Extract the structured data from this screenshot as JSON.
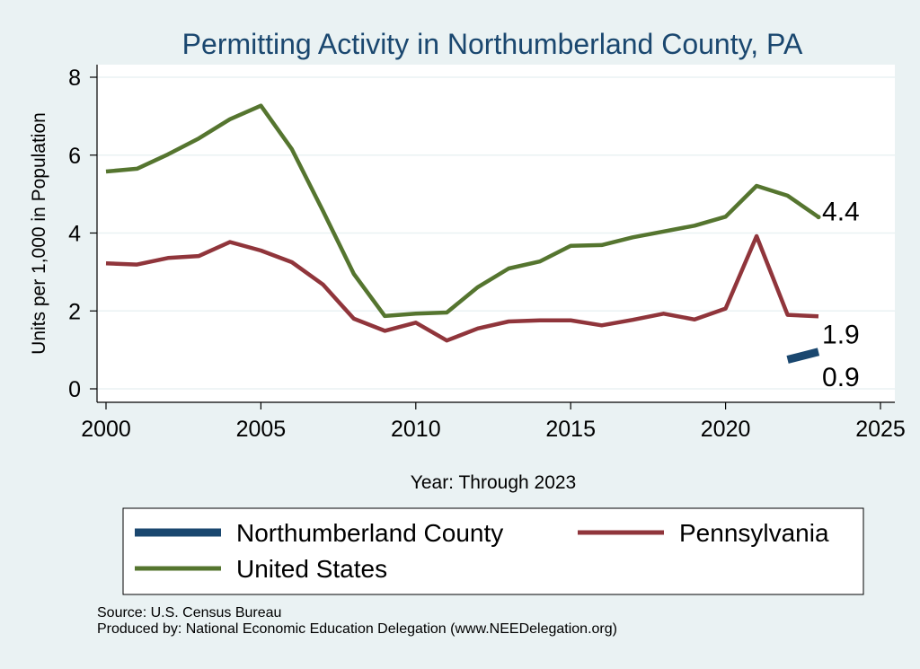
{
  "chart_data": {
    "type": "line",
    "title": "Permitting Activity in Northumberland County, PA",
    "xlabel": "Year: Through 2023",
    "ylabel": "Units per 1,000 in Population",
    "xlim": [
      2000,
      2025
    ],
    "ylim": [
      0,
      8
    ],
    "x_ticks": [
      2000,
      2005,
      2010,
      2015,
      2020,
      2025
    ],
    "y_ticks": [
      0,
      2,
      4,
      6,
      8
    ],
    "grid": "horizontal",
    "legend_position": "bottom",
    "series": [
      {
        "name": "Northumberland County",
        "color": "#1a476f",
        "x": [
          2022,
          2023
        ],
        "values": [
          0.75,
          0.95
        ],
        "end_label": "0.9"
      },
      {
        "name": "Pennsylvania",
        "color": "#90353b",
        "x": [
          2000,
          2001,
          2002,
          2003,
          2004,
          2005,
          2006,
          2007,
          2008,
          2009,
          2010,
          2011,
          2012,
          2013,
          2014,
          2015,
          2016,
          2017,
          2018,
          2019,
          2020,
          2021,
          2022,
          2023
        ],
        "values": [
          3.22,
          3.19,
          3.36,
          3.41,
          3.77,
          3.55,
          3.25,
          2.68,
          1.8,
          1.49,
          1.7,
          1.24,
          1.55,
          1.73,
          1.76,
          1.76,
          1.63,
          1.77,
          1.93,
          1.78,
          2.06,
          3.92,
          1.9,
          1.86
        ],
        "end_label": "1.9"
      },
      {
        "name": "United States",
        "color": "#55752f",
        "x": [
          2000,
          2001,
          2002,
          2003,
          2004,
          2005,
          2006,
          2007,
          2008,
          2009,
          2010,
          2011,
          2012,
          2013,
          2014,
          2015,
          2016,
          2017,
          2018,
          2019,
          2020,
          2021,
          2022,
          2023
        ],
        "values": [
          5.58,
          5.65,
          6.02,
          6.43,
          6.92,
          7.27,
          6.15,
          4.57,
          2.95,
          1.87,
          1.93,
          1.96,
          2.61,
          3.09,
          3.27,
          3.67,
          3.69,
          3.89,
          4.04,
          4.19,
          4.42,
          5.21,
          4.96,
          4.41
        ],
        "end_label": "4.4"
      }
    ]
  },
  "footer": {
    "source": "Source: U.S. Census Bureau",
    "produced_by": "Produced by: National Economic Education Delegation (www.NEEDelegation.org)"
  }
}
